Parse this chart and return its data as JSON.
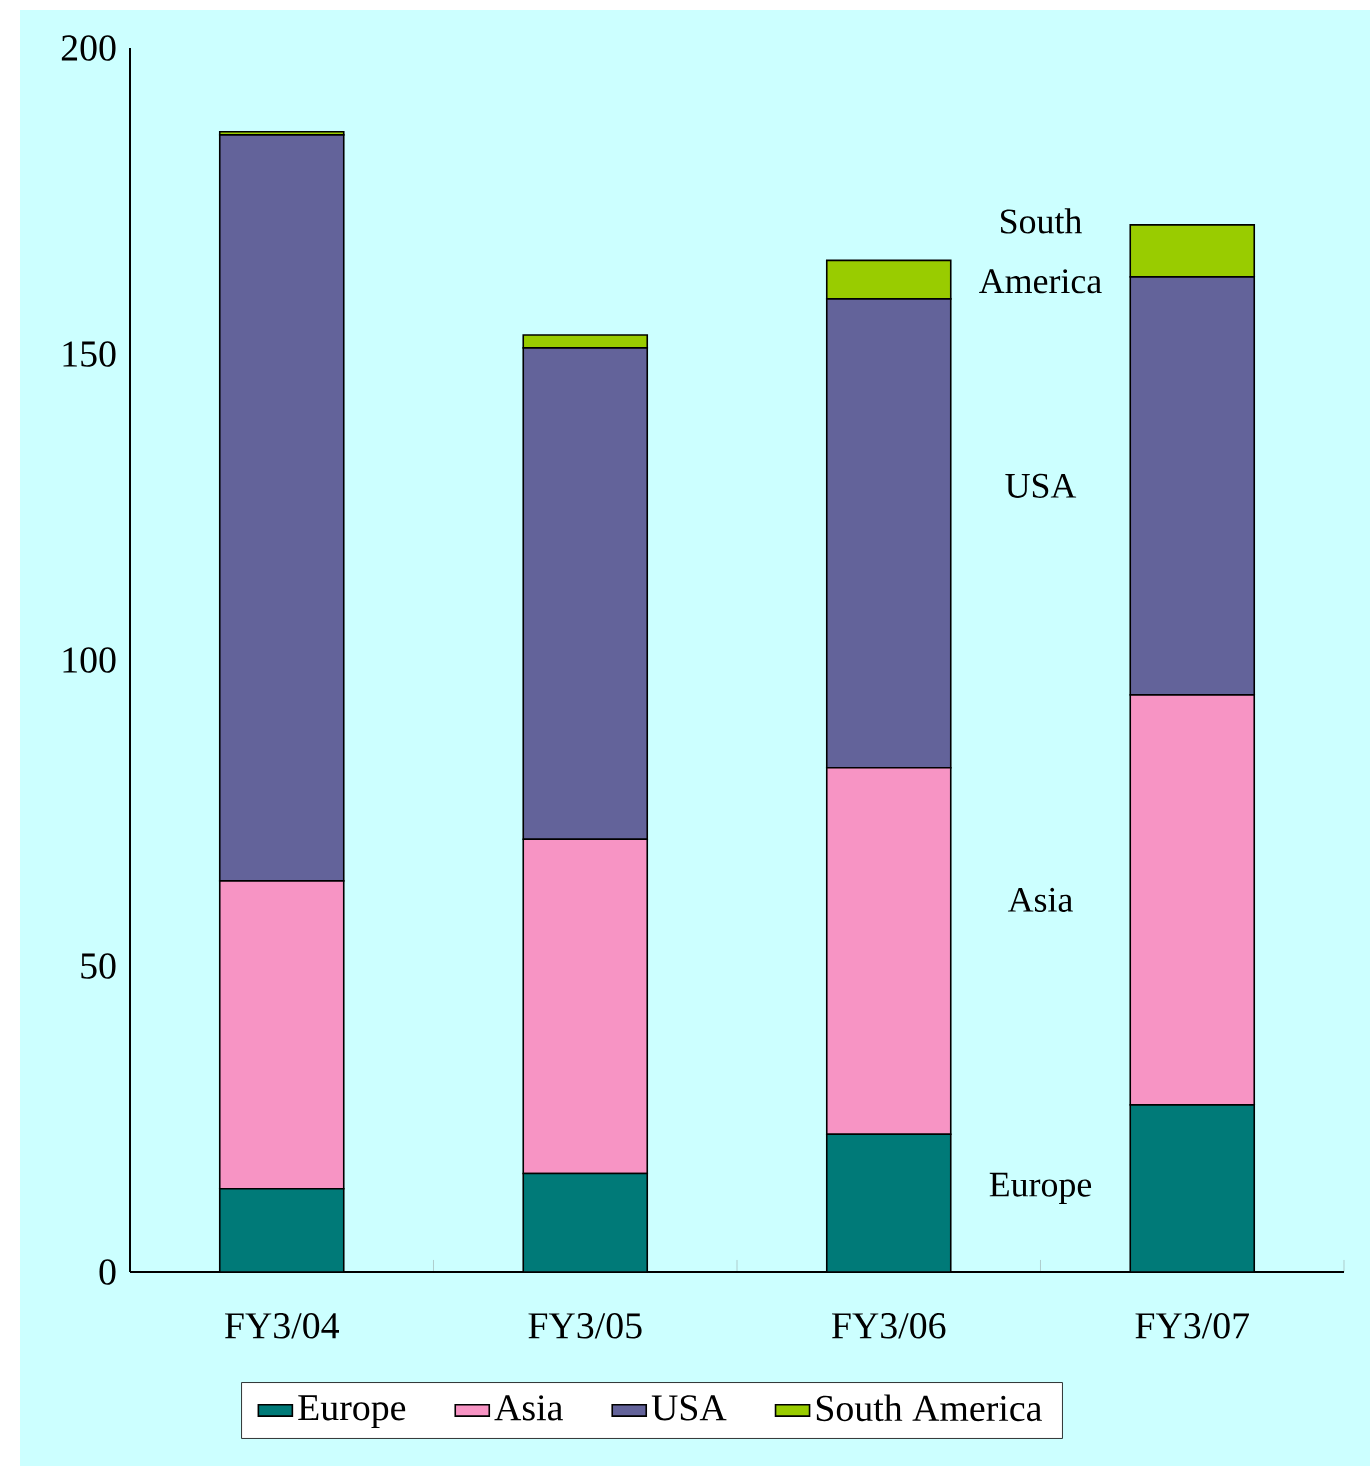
{
  "chart_data": {
    "type": "bar",
    "stacked": true,
    "categories": [
      "FY3/04",
      "FY3/05",
      "FY3/06",
      "FY3/07"
    ],
    "series": [
      {
        "name": "Europe",
        "color": "#007a78",
        "values": [
          13.6,
          16.1,
          22.5,
          27.3
        ]
      },
      {
        "name": "Asia",
        "color": "#f794c4",
        "values": [
          50.3,
          54.6,
          59.9,
          67.0
        ]
      },
      {
        "name": "USA",
        "color": "#63639a",
        "values": [
          121.9,
          80.3,
          76.6,
          68.3
        ]
      },
      {
        "name": "South America",
        "color": "#99cc00",
        "values": [
          0.5,
          2.1,
          6.3,
          8.5
        ]
      }
    ],
    "ylim": [
      0,
      200
    ],
    "yticks": [
      0,
      50,
      100,
      150,
      200
    ],
    "annotations": [
      "Europe",
      "Asia",
      "USA",
      "South America"
    ],
    "legend": "bottom"
  }
}
